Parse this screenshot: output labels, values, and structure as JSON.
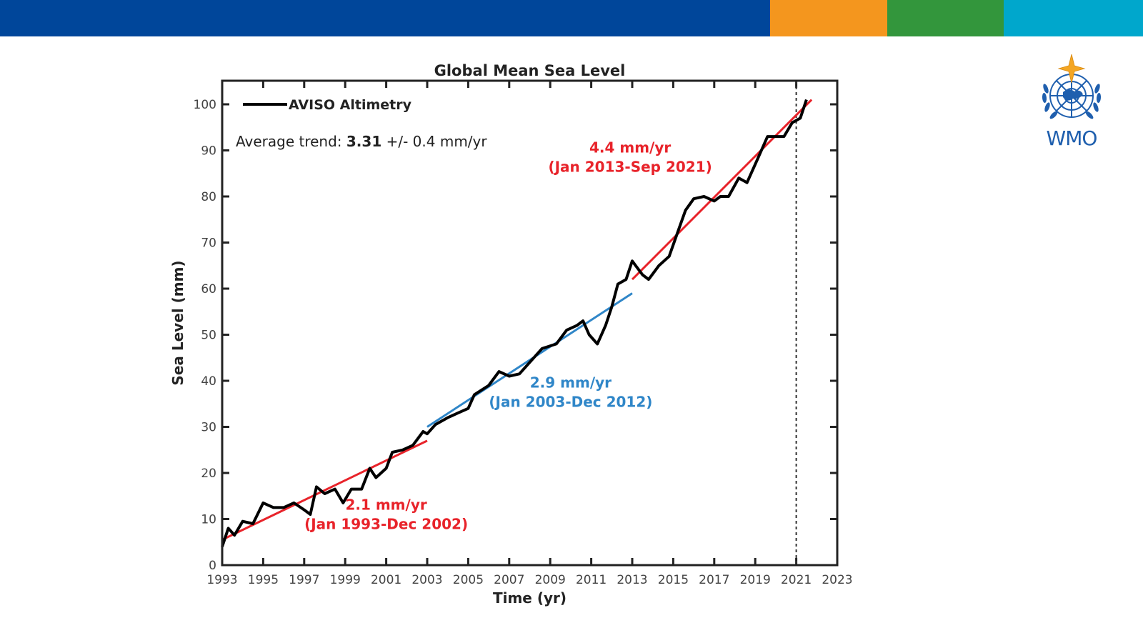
{
  "header": {
    "bar_colors": {
      "blue": "#00469a",
      "orange": "#f4961e",
      "green": "#33963c",
      "cyan": "#00a7cc"
    }
  },
  "logo": {
    "text": "WMO",
    "color": "#1f5fae",
    "star_color": "#f4a623",
    "icon": "wmo-emblem-icon"
  },
  "chart_data": {
    "type": "line",
    "title": "Global Mean Sea Level",
    "xlabel": "Time (yr)",
    "ylabel": "Sea Level (mm)",
    "xlim": [
      1993,
      2023
    ],
    "ylim": [
      0,
      105
    ],
    "xticks": [
      1993,
      1995,
      1997,
      1999,
      2001,
      2003,
      2005,
      2007,
      2009,
      2011,
      2013,
      2015,
      2017,
      2019,
      2021,
      2023
    ],
    "yticks": [
      0,
      10,
      20,
      30,
      40,
      50,
      60,
      70,
      80,
      90,
      100
    ],
    "grid": false,
    "legend": {
      "position": "top-left",
      "entries": [
        {
          "label": "AVISO Altimetry",
          "color": "#000000"
        }
      ]
    },
    "average_trend": {
      "prefix": "Average trend: ",
      "value": "3.31",
      "suffix": " +/- 0.4 mm/yr"
    },
    "vertical_marker": {
      "x": 2021,
      "style": "dashed"
    },
    "series": [
      {
        "name": "AVISO Altimetry",
        "color": "#000000",
        "x": [
          1993.0,
          1993.3,
          1993.6,
          1994.0,
          1994.5,
          1995.0,
          1995.5,
          1996.0,
          1996.5,
          1997.0,
          1997.3,
          1997.6,
          1998.0,
          1998.5,
          1998.9,
          1999.3,
          1999.8,
          2000.2,
          2000.5,
          2001.0,
          2001.3,
          2001.8,
          2002.3,
          2002.8,
          2003.0,
          2003.4,
          2004.0,
          2004.5,
          2005.0,
          2005.3,
          2006.0,
          2006.5,
          2007.0,
          2007.5,
          2008.0,
          2008.6,
          2009.3,
          2009.8,
          2010.3,
          2010.6,
          2010.9,
          2011.3,
          2011.7,
          2012.0,
          2012.3,
          2012.7,
          2013.0,
          2013.5,
          2013.8,
          2014.3,
          2014.8,
          2015.2,
          2015.6,
          2016.0,
          2016.5,
          2017.0,
          2017.3,
          2017.7,
          2018.2,
          2018.6,
          2019.1,
          2019.6,
          2020.0,
          2020.4,
          2020.8,
          2021.2,
          2021.5
        ],
        "y": [
          4,
          8,
          6.5,
          9.5,
          9,
          13.5,
          12.5,
          12.5,
          13.5,
          12,
          11,
          17,
          15.5,
          16.5,
          13.5,
          16.5,
          16.5,
          21,
          19,
          21,
          24.5,
          25,
          26,
          29,
          28.5,
          30.5,
          32,
          33,
          34,
          37,
          39,
          42,
          41,
          41.5,
          44,
          47,
          48,
          51,
          52,
          53,
          50,
          48,
          52,
          56,
          61,
          62,
          66,
          63,
          62,
          65,
          67,
          72,
          77,
          79.5,
          80,
          79,
          80,
          80,
          84,
          83,
          88,
          93,
          93,
          93,
          96,
          97,
          101
        ]
      }
    ],
    "trends": [
      {
        "name": "trend-1993-2002",
        "color": "#e8232a",
        "x": [
          1993,
          2003
        ],
        "y": [
          5.5,
          27
        ],
        "rate": "2.1 mm/yr",
        "period": "(Jan 1993-Dec 2002)",
        "label_anchor": [
          2001.0,
          12
        ]
      },
      {
        "name": "trend-2003-2012",
        "color": "#2f86c8",
        "x": [
          2003,
          2013
        ],
        "y": [
          30,
          59
        ],
        "rate": "2.9 mm/yr",
        "period": "(Jan 2003-Dec 2012)",
        "label_anchor": [
          2010.0,
          38.5
        ]
      },
      {
        "name": "trend-2013-2021",
        "color": "#e8232a",
        "x": [
          2013,
          2021.75
        ],
        "y": [
          62,
          101
        ],
        "rate": "4.4 mm/yr",
        "period": "(Jan 2013-Sep 2021)",
        "label_anchor": [
          2012.9,
          89.5
        ]
      }
    ]
  }
}
